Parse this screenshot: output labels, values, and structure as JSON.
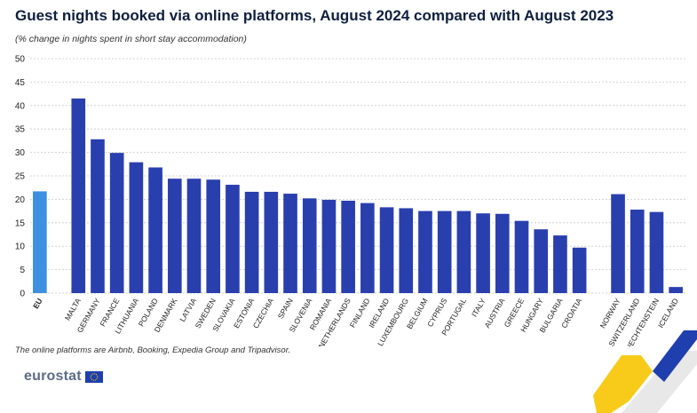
{
  "title": "Guest nights booked via online platforms, August 2024 compared with August 2023",
  "subtitle": "(% change in nights spent in short stay accommodation)",
  "footnote": "The online platforms are Airbnb, Booking, Expedia Group and Tripadvisor.",
  "logo_text": "eurostat",
  "colors": {
    "eu_bar": "#3d8fe0",
    "country_bar": "#2a3fae",
    "grid": "#c9c9c9",
    "axis_text": "#222222",
    "stripe_yellow": "#f7c400",
    "stripe_blue": "#1f3fae",
    "stripe_light": "#d8d8d8"
  },
  "chart_data": {
    "type": "bar",
    "ylim": [
      0,
      50
    ],
    "yticks": [
      0,
      5,
      10,
      15,
      20,
      25,
      30,
      35,
      40,
      45,
      50
    ],
    "grid": true,
    "groups": [
      {
        "categories": [
          "EU"
        ],
        "values": [
          21.7
        ]
      },
      {
        "categories": [
          "MALTA",
          "GERMANY",
          "FRANCE",
          "LITHUANIA",
          "POLAND",
          "DENMARK",
          "LATVIA",
          "SWEDEN",
          "SLOVAKIA",
          "ESTONIA",
          "CZECHIA",
          "SPAIN",
          "SLOVENIA",
          "ROMANIA",
          "NETHERLANDS",
          "FINLAND",
          "IRELAND",
          "LUXEMBOURG",
          "BELGIUM",
          "CYPRUS",
          "PORTUGAL",
          "ITALY",
          "AUSTRIA",
          "GREECE",
          "HUNGARY",
          "BULGARIA",
          "CROATIA"
        ],
        "values": [
          41.5,
          32.8,
          29.9,
          27.9,
          26.8,
          24.4,
          24.4,
          24.2,
          23.1,
          21.6,
          21.6,
          21.2,
          20.2,
          19.9,
          19.7,
          19.2,
          18.3,
          18.1,
          17.5,
          17.5,
          17.5,
          17.0,
          16.9,
          15.4,
          13.6,
          12.3,
          9.7
        ]
      },
      {
        "categories": [
          "NORWAY",
          "SWITZERLAND",
          "LIECHTENSTEIN",
          "ICELAND"
        ],
        "values": [
          21.1,
          17.8,
          17.3,
          1.3
        ]
      }
    ]
  }
}
